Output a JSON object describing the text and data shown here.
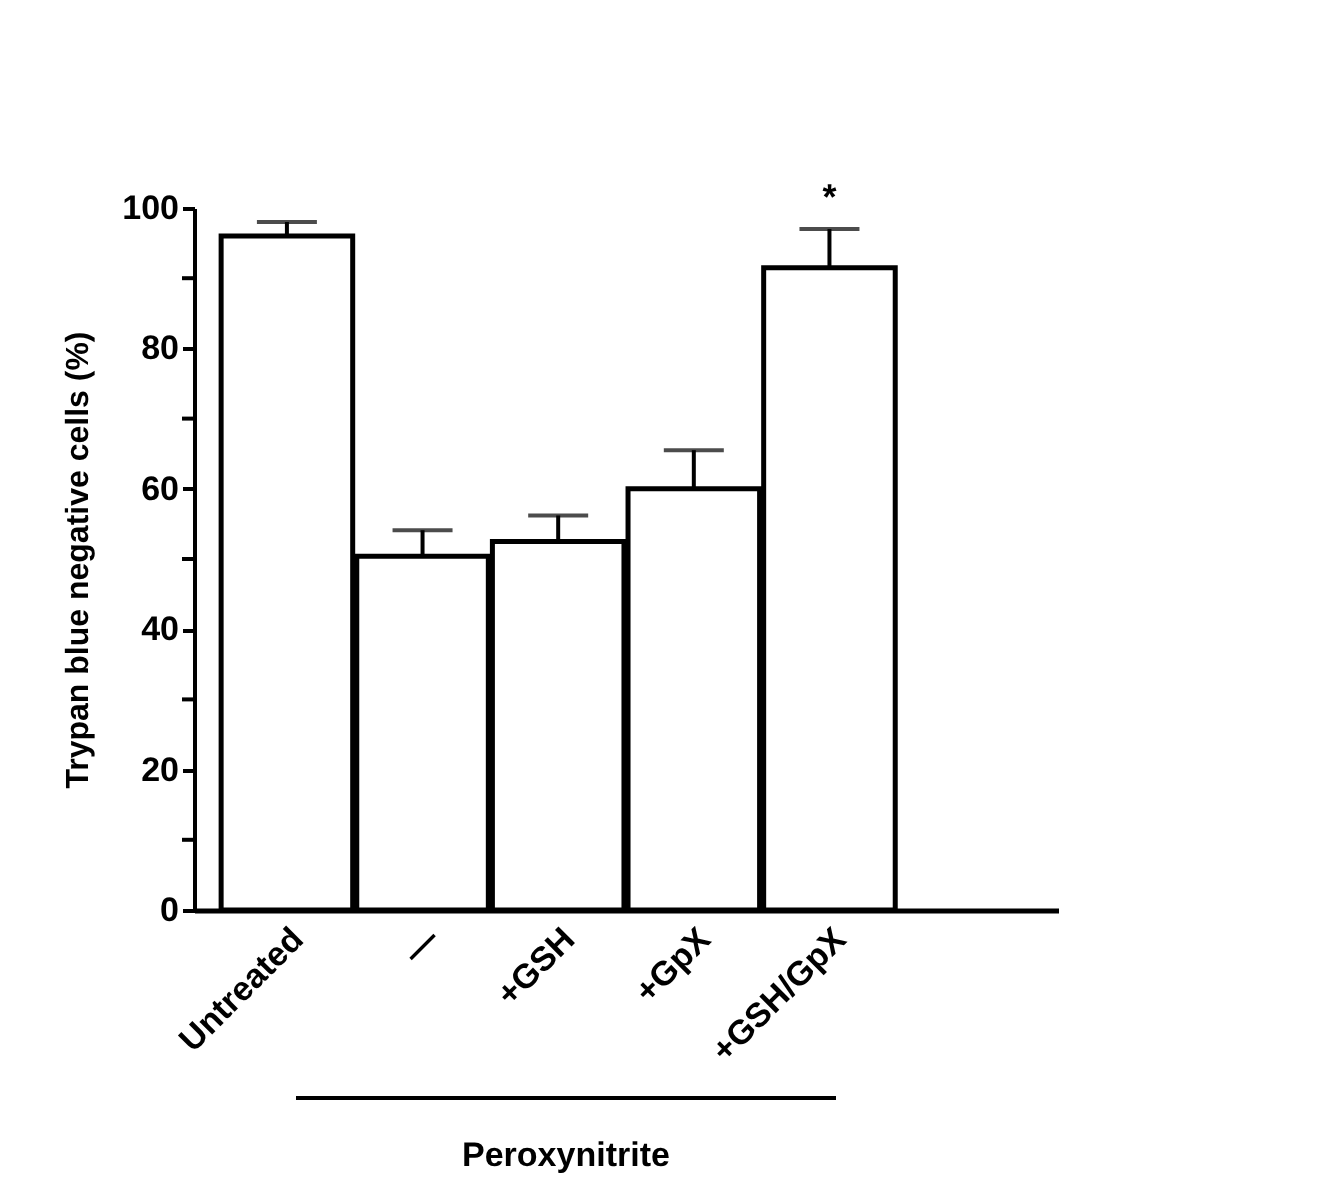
{
  "chart_data": {
    "type": "bar",
    "ylabel": "Trypan blue negative cells (%)",
    "categories": [
      "Untreated",
      "—",
      "+GSH",
      "+GpX",
      "+GSH/GpX"
    ],
    "values": [
      96,
      50.4,
      52.5,
      60,
      91.5
    ],
    "errors": [
      2,
      3.7,
      3.7,
      5.5,
      5.5
    ],
    "color": "#ffffff",
    "ylim": [
      0,
      100
    ],
    "yticks": [
      0,
      {
        "value": 10,
        "label": null
      },
      20,
      {
        "value": 30,
        "label": null
      },
      40,
      {
        "value": 50,
        "label": null
      },
      60,
      {
        "value": 70,
        "label": null
      },
      80,
      {
        "value": 90,
        "label": null
      },
      100
    ],
    "grid": false,
    "annotations": [
      {
        "text": "*",
        "x": "+GSH/GpX",
        "y": 97
      },
      "Peroxynitrite"
    ]
  }
}
